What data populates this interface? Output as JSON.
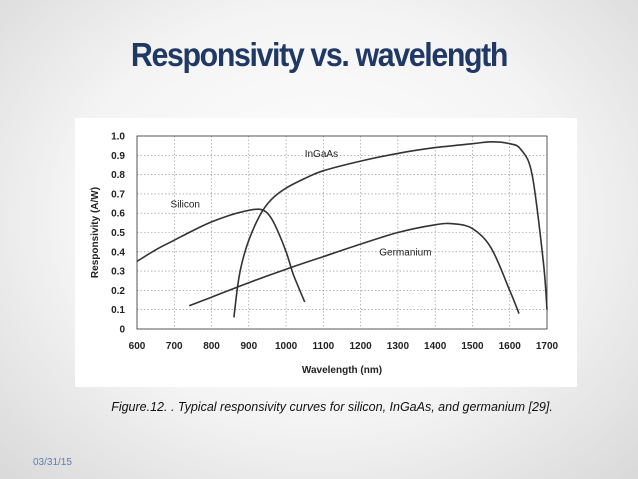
{
  "slide": {
    "title": "Responsivity vs. wavelength",
    "caption": "Figure.12. . Typical responsivity curves for silicon, InGaAs, and germanium [29].",
    "date": "03/31/15"
  },
  "chart_data": {
    "type": "line",
    "xlabel": "Wavelength (nm)",
    "ylabel": "Responsivity (A/W)",
    "xlim": [
      600,
      1700
    ],
    "ylim": [
      0,
      1.0
    ],
    "xticks": [
      600,
      700,
      800,
      900,
      1000,
      1100,
      1200,
      1300,
      1400,
      1500,
      1600,
      1700
    ],
    "yticks": [
      "0",
      "0.1",
      "0.2",
      "0.3",
      "0.4",
      "0.5",
      "0.6",
      "0.7",
      "0.8",
      "0.9",
      "1.0"
    ],
    "grid": true,
    "series": [
      {
        "name": "Silicon",
        "x": [
          600,
          650,
          700,
          750,
          800,
          850,
          900,
          930,
          950,
          970,
          1000,
          1020,
          1050
        ],
        "y": [
          0.35,
          0.41,
          0.46,
          0.51,
          0.555,
          0.59,
          0.615,
          0.62,
          0.6,
          0.54,
          0.4,
          0.28,
          0.14
        ]
      },
      {
        "name": "InGaAs",
        "x": [
          860,
          870,
          880,
          900,
          930,
          960,
          1000,
          1050,
          1100,
          1200,
          1300,
          1400,
          1500,
          1550,
          1600,
          1630,
          1660,
          1690,
          1700
        ],
        "y": [
          0.06,
          0.22,
          0.33,
          0.46,
          0.59,
          0.67,
          0.73,
          0.78,
          0.82,
          0.87,
          0.91,
          0.94,
          0.96,
          0.97,
          0.96,
          0.93,
          0.8,
          0.35,
          0.1
        ]
      },
      {
        "name": "Germanium",
        "x": [
          740,
          800,
          900,
          1000,
          1100,
          1200,
          1300,
          1400,
          1450,
          1500,
          1550,
          1600,
          1625
        ],
        "y": [
          0.12,
          0.165,
          0.24,
          0.31,
          0.375,
          0.44,
          0.5,
          0.54,
          0.545,
          0.52,
          0.42,
          0.2,
          0.08
        ]
      }
    ],
    "annotations": [
      {
        "text": "Silicon",
        "x": 690,
        "y": 0.63
      },
      {
        "text": "InGaAs",
        "x": 1050,
        "y": 0.89
      },
      {
        "text": "Germanium",
        "x": 1250,
        "y": 0.38
      }
    ]
  }
}
